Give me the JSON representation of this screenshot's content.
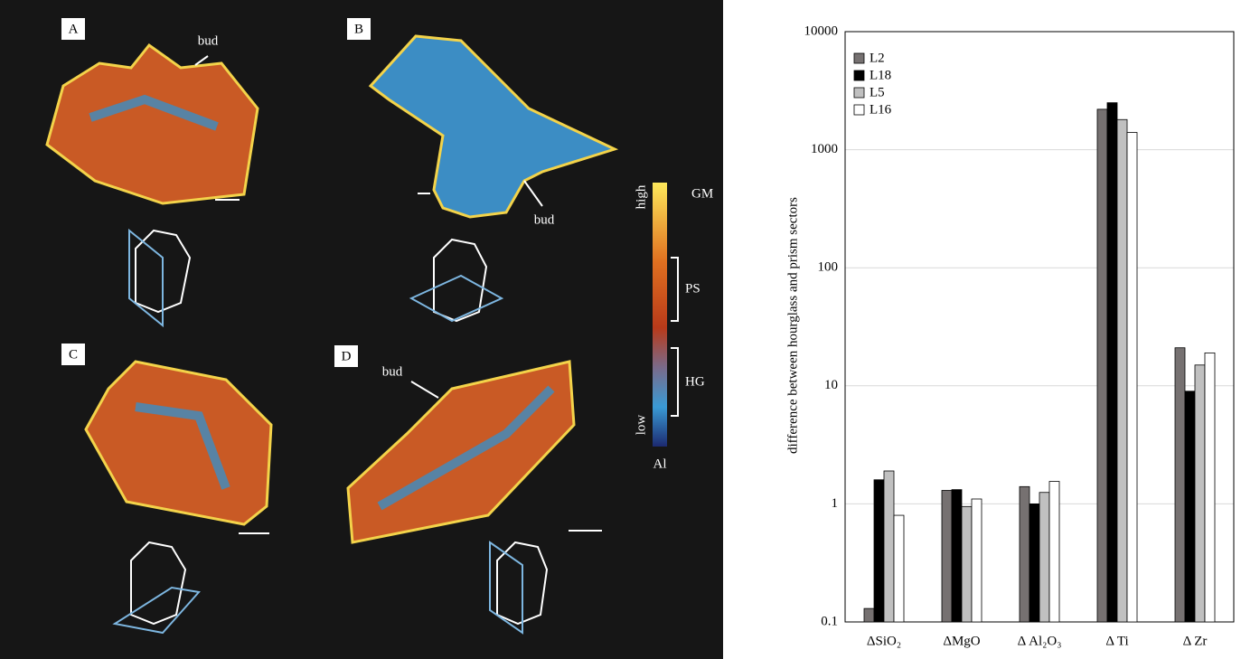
{
  "chart_data": {
    "type": "bar",
    "y_label": "difference between hourglass and prism sectors",
    "categories": [
      "ΔSiO₂",
      "ΔMgO",
      "Δ Al₂O₃",
      "Δ Ti",
      "Δ Zr"
    ],
    "series": [
      {
        "name": "L2",
        "color": "#767171",
        "values": [
          0.13,
          1.3,
          1.4,
          2200,
          21
        ]
      },
      {
        "name": "L18",
        "color": "#000000",
        "values": [
          1.6,
          1.32,
          1.0,
          2500,
          9
        ]
      },
      {
        "name": "L5",
        "color": "#c0c0c0",
        "values": [
          1.9,
          0.95,
          1.25,
          1800,
          15
        ]
      },
      {
        "name": "L16",
        "color": "#ffffff",
        "values": [
          0.8,
          1.1,
          1.55,
          1400,
          19
        ]
      }
    ],
    "ylim": [
      0.1,
      10000
    ],
    "yticks": [
      0.1,
      1,
      10,
      100,
      1000,
      10000
    ],
    "log_y": true,
    "grid": true,
    "legend": "top-left"
  },
  "map_panel": {
    "panels": [
      "A",
      "B",
      "C",
      "D"
    ],
    "bud": [
      "bud",
      "bud",
      "bud"
    ],
    "colorbar": {
      "high": "high",
      "low": "low",
      "element": "Al",
      "zones": [
        "GM",
        "PS",
        "HG"
      ]
    }
  }
}
